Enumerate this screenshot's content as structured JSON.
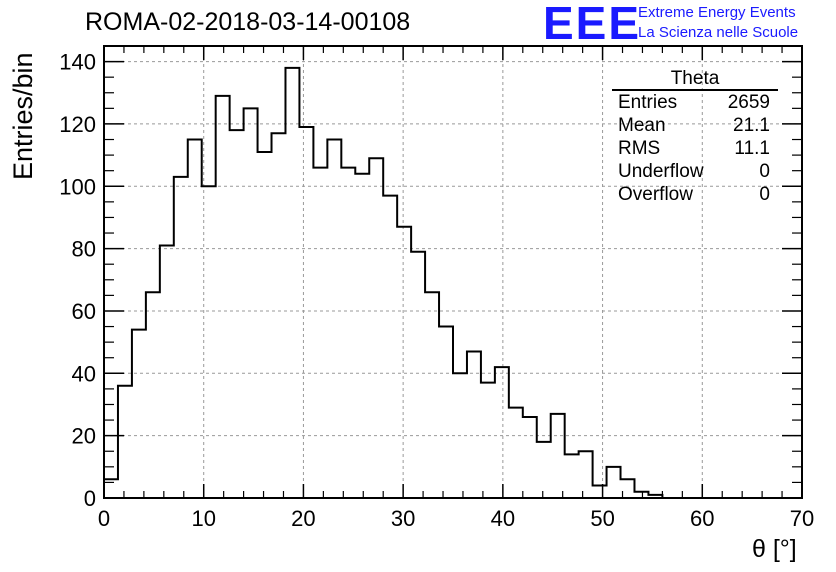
{
  "title": "ROMA-02-2018-03-14-00108",
  "logo": {
    "text": "EEE",
    "line1": "Extreme Energy Events",
    "line2": "La Scienza nelle Scuole",
    "color": "#1a1aff"
  },
  "stats": {
    "title": "Theta",
    "rows": [
      {
        "label": "Entries",
        "value": "2659"
      },
      {
        "label": "Mean",
        "value": "21.1"
      },
      {
        "label": "RMS",
        "value": "11.1"
      },
      {
        "label": "Underflow",
        "value": "0"
      },
      {
        "label": "Overflow",
        "value": "0"
      }
    ]
  },
  "chart_data": {
    "type": "bar",
    "histogram": true,
    "title": "ROMA-02-2018-03-14-00108",
    "xlabel": "θ [°]",
    "ylabel": "Entries/bin",
    "xlim": [
      0,
      70
    ],
    "ylim": [
      0,
      145
    ],
    "grid": true,
    "bin_width": 1.4,
    "x": [
      0,
      1.4,
      2.8,
      4.2,
      5.6,
      7.0,
      8.4,
      9.8,
      11.2,
      12.6,
      14.0,
      15.4,
      16.8,
      18.2,
      19.6,
      21.0,
      22.4,
      23.8,
      25.2,
      26.6,
      28.0,
      29.4,
      30.8,
      32.2,
      33.6,
      35.0,
      36.4,
      37.8,
      39.2,
      40.6,
      42.0,
      43.4,
      44.8,
      46.2,
      47.6,
      49.0,
      50.4,
      51.8,
      53.2,
      54.6
    ],
    "values": [
      6,
      36,
      54,
      66,
      81,
      103,
      115,
      100,
      129,
      118,
      125,
      111,
      117,
      138,
      119,
      106,
      115,
      106,
      104,
      109,
      97,
      87,
      79,
      66,
      55,
      40,
      47,
      37,
      42,
      29,
      26,
      18,
      27,
      14,
      15,
      4,
      10,
      6,
      2,
      1
    ],
    "xticks": [
      0,
      10,
      20,
      30,
      40,
      50,
      60,
      70
    ],
    "yticks": [
      0,
      20,
      40,
      60,
      80,
      100,
      120,
      140
    ]
  }
}
